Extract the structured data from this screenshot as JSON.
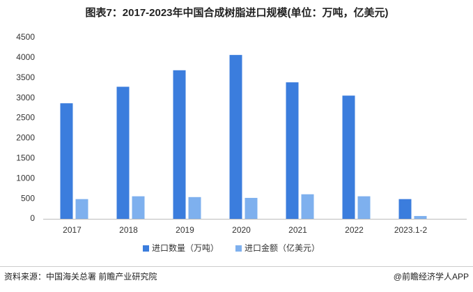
{
  "chart_data": {
    "type": "bar",
    "title": "图表7：2017-2023年中国合成树脂进口规模(单位：万吨，亿美元)",
    "categories": [
      "2017",
      "2018",
      "2019",
      "2020",
      "2021",
      "2022",
      "2023.1-2"
    ],
    "series": [
      {
        "name": "进口数量（万吨）",
        "color": "#3b7ddd",
        "values": [
          2870,
          3280,
          3690,
          4070,
          3390,
          3060,
          490
        ]
      },
      {
        "name": "进口金额（亿美元）",
        "color": "#7eb0ee",
        "values": [
          490,
          560,
          540,
          520,
          610,
          560,
          70
        ]
      }
    ],
    "ylim": [
      0,
      4500
    ],
    "yticks": [
      0,
      500,
      1000,
      1500,
      2000,
      2500,
      3000,
      3500,
      4000,
      4500
    ],
    "grid": false,
    "legend": "bottom",
    "source": "资料来源：中国海关总署 前瞻产业研究院",
    "credit": "@前瞻经济学人APP"
  }
}
